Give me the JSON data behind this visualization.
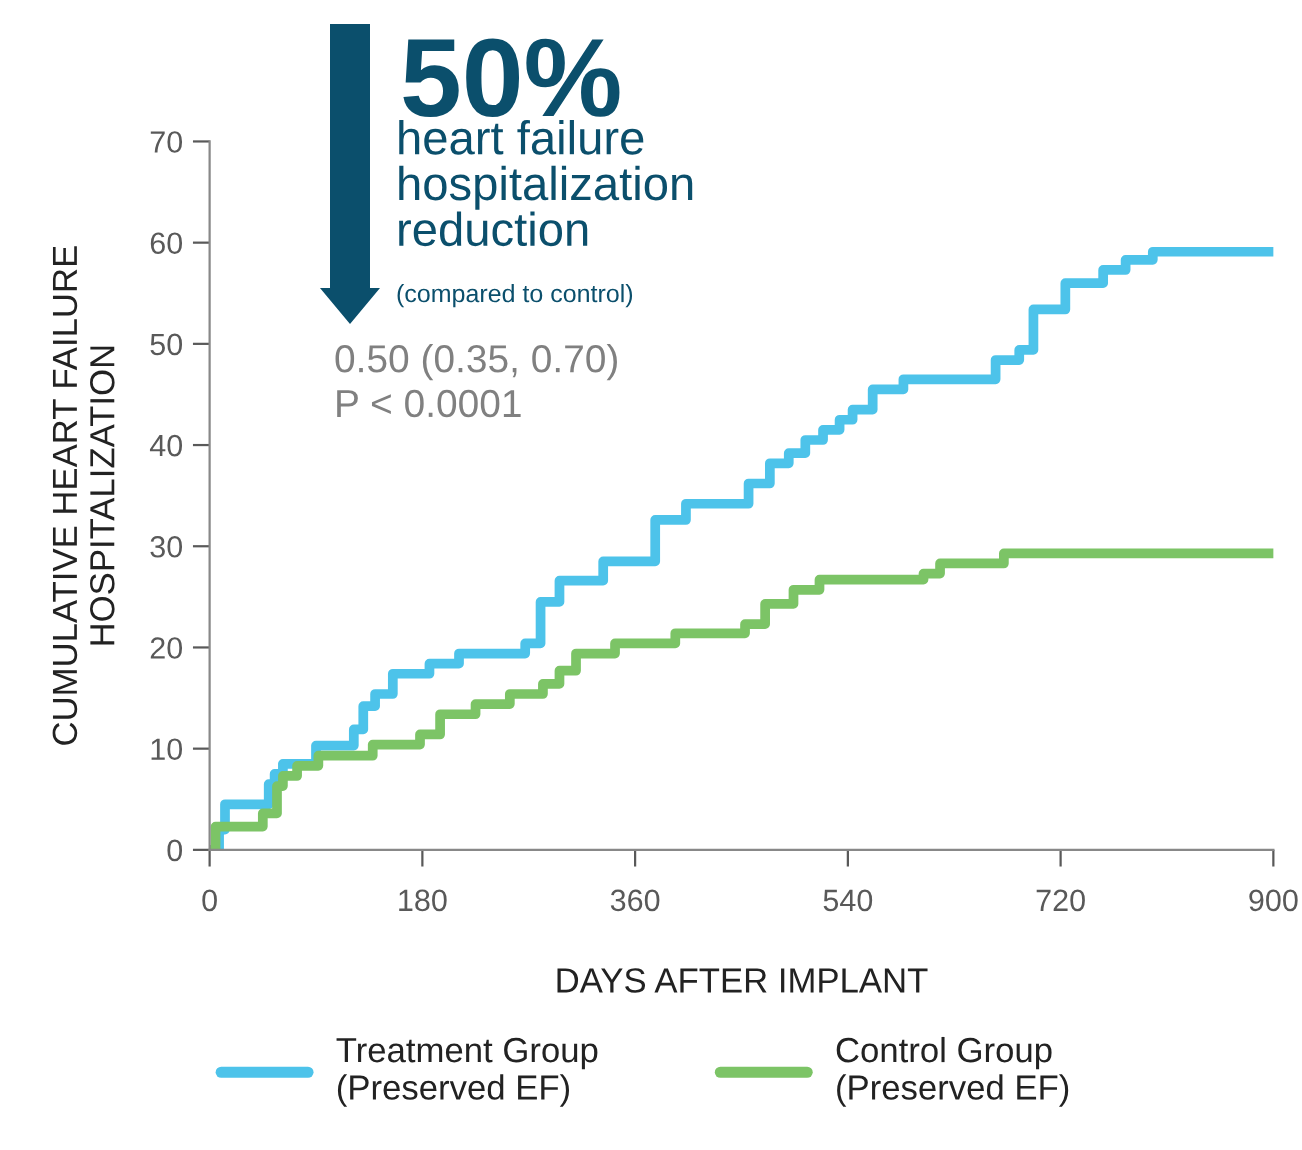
{
  "chart_data": {
    "type": "step",
    "xlabel": "DAYS AFTER IMPLANT",
    "ylabel": "CUMULATIVE HEART FAILURE\nHOSPITALIZATION",
    "xlim": [
      0,
      900
    ],
    "xticks": [
      0,
      180,
      360,
      540,
      720,
      900
    ],
    "ylim": [
      0,
      70
    ],
    "yticks": [
      0,
      10,
      20,
      30,
      40,
      50,
      60,
      70
    ],
    "grid": false,
    "legend": "bottom",
    "marker": "none",
    "line_style": "solid",
    "series": [
      {
        "name": "Treatment Group\n(Preserved EF)",
        "color": "#4dc3ea",
        "x": [
          0,
          8,
          13,
          47,
          50,
          55,
          62,
          71,
          90,
          105,
          122,
          130,
          140,
          155,
          186,
          211,
          267,
          280,
          296,
          333,
          377,
          403,
          452,
          456,
          474,
          490,
          504,
          519,
          533,
          544,
          561,
          587,
          660,
          665,
          685,
          697,
          724,
          756,
          775,
          798,
          900
        ],
        "values": [
          0,
          2,
          4.5,
          4.5,
          6.5,
          7.5,
          8.5,
          8.5,
          10.3,
          10.3,
          11.9,
          14.2,
          15.4,
          17.4,
          18.4,
          19.4,
          20.4,
          24.5,
          26.6,
          28.5,
          32.6,
          34.2,
          34.2,
          36.2,
          38.2,
          39.2,
          40.5,
          41.5,
          42.5,
          43.5,
          45.5,
          46.5,
          46.5,
          48.4,
          49.4,
          53.4,
          56,
          57.3,
          58.3,
          59.1,
          59.1
        ]
      },
      {
        "name": "Control Group\n(Preserved EF)",
        "color": "#7cc466",
        "x": [
          0,
          5,
          45,
          57,
          62,
          74,
          92,
          138,
          178,
          195,
          225,
          254,
          282,
          296,
          310,
          343,
          394,
          453,
          470,
          494,
          516,
          604,
          618,
          672,
          900
        ],
        "values": [
          0,
          2.3,
          3.6,
          6.3,
          7.3,
          8.3,
          9.3,
          10.4,
          11.4,
          13.4,
          14.4,
          15.4,
          16.4,
          17.7,
          19.4,
          20.4,
          21.4,
          22.3,
          24.3,
          25.7,
          26.7,
          27.3,
          28.3,
          29.3,
          29.3
        ]
      }
    ],
    "annotations": [
      "50%",
      "heart failure\nhospitalization\nreduction",
      "(compared to control)",
      "0.50 (0.35, 0.70)\nP < 0.0001"
    ]
  }
}
